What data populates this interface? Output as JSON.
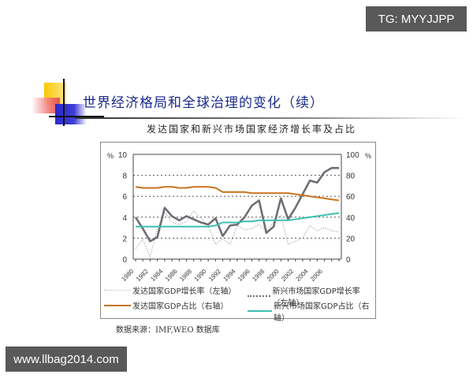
{
  "badges": {
    "top_right": "TG: MYYJJPP",
    "bottom_left": "www.llbag2014.com"
  },
  "slide": {
    "title": "世界经济格局和全球治理的变化（续）",
    "subtitle": "发达国家和新兴市场国家经济增长率及占比",
    "source": "数据来源：IMF,WEO 数据库"
  },
  "colors": {
    "title": "#1a2a8a",
    "adv_growth": "#b8b8b8",
    "em_growth": "#6e6e76",
    "adv_share": "#c8741e",
    "em_share": "#3fbfb4"
  },
  "chart_data": {
    "type": "line",
    "title": "发达国家和新兴市场国家经济增长率及占比",
    "xlabel": "",
    "ylabel_left": "%",
    "ylabel_right": "%",
    "ylim_left": [
      0,
      10
    ],
    "ylim_right": [
      0,
      100
    ],
    "yticks_left": [
      0,
      2,
      4,
      6,
      8,
      10
    ],
    "yticks_right": [
      0,
      20,
      40,
      60,
      80,
      100
    ],
    "xtick_labels": [
      "1980",
      "1982",
      "1984",
      "1986",
      "1988",
      "1990",
      "1992",
      "1994",
      "1996",
      "1998",
      "2000",
      "2002",
      "2004",
      "2006"
    ],
    "grid": "horizontal dashed",
    "legend_position": "bottom",
    "x": [
      1980,
      1981,
      1982,
      1983,
      1984,
      1985,
      1986,
      1987,
      1988,
      1989,
      1990,
      1991,
      1992,
      1993,
      1994,
      1995,
      1996,
      1997,
      1998,
      1999,
      2000,
      2001,
      2002,
      2003,
      2004,
      2005,
      2006,
      2007,
      2008
    ],
    "series": [
      {
        "name": "发达国家GDP增长率（左轴）",
        "axis": "left",
        "style": "dotted",
        "values": [
          1.0,
          1.9,
          0.2,
          2.9,
          4.5,
          3.5,
          3.3,
          3.6,
          4.6,
          3.9,
          3.2,
          1.4,
          2.0,
          1.4,
          3.2,
          2.8,
          2.9,
          3.3,
          2.7,
          3.5,
          4.2,
          1.4,
          1.7,
          2.0,
          3.2,
          2.7,
          3.0,
          2.7,
          2.6
        ]
      },
      {
        "name": "新兴市场国家GDP增长率（左轴）",
        "axis": "left",
        "style": "solid-thick",
        "values": [
          4.0,
          2.9,
          1.7,
          2.1,
          4.9,
          4.1,
          3.7,
          4.1,
          3.8,
          3.5,
          3.3,
          3.9,
          2.2,
          3.2,
          3.3,
          4.0,
          5.1,
          5.6,
          2.5,
          3.1,
          5.8,
          3.8,
          4.9,
          6.2,
          7.5,
          7.3,
          8.3,
          8.7,
          8.7
        ]
      },
      {
        "name": "发达国家GDP占比（右轴）",
        "axis": "right",
        "style": "solid",
        "values": [
          69,
          68,
          68,
          68,
          69,
          69,
          68,
          68,
          69,
          69,
          69,
          68,
          64,
          64,
          64,
          64,
          63,
          63,
          63,
          63,
          63,
          63,
          62,
          61,
          60,
          59,
          58,
          57,
          56
        ]
      },
      {
        "name": "新兴市场国家GDP占比（右轴）",
        "axis": "right",
        "style": "solid",
        "values": [
          31,
          31,
          31,
          31,
          31,
          31,
          31,
          31,
          31,
          31,
          31,
          32,
          35,
          35,
          35,
          36,
          36,
          37,
          37,
          37,
          37,
          37,
          38,
          39,
          40,
          41,
          42,
          43,
          44
        ]
      }
    ]
  },
  "legend": [
    {
      "label": "发达国家GDP增长率（左轴）"
    },
    {
      "label": "新兴市场国家GDP增长率（左轴）"
    },
    {
      "label": "发达国家GDP占比（右轴）"
    },
    {
      "label": "新兴市场国家GDP占比（右轴）"
    }
  ]
}
